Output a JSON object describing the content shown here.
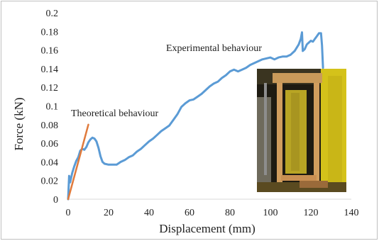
{
  "chart_data": {
    "type": "line",
    "xlabel": "Displacement (mm)",
    "ylabel": "Force (kN)",
    "xlim": [
      0,
      140
    ],
    "ylim": [
      0,
      0.2
    ],
    "xticks": [
      "0",
      "20",
      "40",
      "60",
      "80",
      "100",
      "120",
      "140"
    ],
    "yticks": [
      "0",
      "0.02",
      "0.04",
      "0.06",
      "0.08",
      "0.1",
      "0.12",
      "0.14",
      "0.16",
      "0.18",
      "0.2"
    ],
    "grid": false,
    "series": [
      {
        "name": "Experimental behaviour",
        "color": "#5b9bd5",
        "x": [
          0,
          0.5,
          1,
          2,
          3,
          4,
          5,
          6,
          7,
          8,
          9,
          10,
          11,
          12,
          13,
          14,
          15,
          16,
          17,
          18,
          20,
          22,
          24,
          26,
          28,
          30,
          32,
          34,
          36,
          38,
          40,
          42,
          44,
          46,
          48,
          50,
          52,
          54,
          56,
          58,
          60,
          62,
          64,
          66,
          68,
          70,
          72,
          74,
          76,
          78,
          80,
          82,
          84,
          86,
          88,
          90,
          92,
          94,
          96,
          98,
          100,
          102,
          104,
          106,
          108,
          110,
          112,
          114,
          115,
          115.6,
          116,
          117,
          118,
          119,
          120,
          121,
          122,
          123,
          124,
          125,
          125.5,
          126
        ],
        "y": [
          0,
          0.025,
          0.018,
          0.028,
          0.035,
          0.041,
          0.045,
          0.052,
          0.054,
          0.053,
          0.056,
          0.061,
          0.064,
          0.066,
          0.065,
          0.062,
          0.055,
          0.046,
          0.04,
          0.038,
          0.037,
          0.037,
          0.037,
          0.04,
          0.042,
          0.045,
          0.047,
          0.051,
          0.054,
          0.058,
          0.062,
          0.065,
          0.069,
          0.073,
          0.076,
          0.079,
          0.085,
          0.091,
          0.099,
          0.103,
          0.106,
          0.107,
          0.11,
          0.113,
          0.117,
          0.121,
          0.124,
          0.126,
          0.13,
          0.133,
          0.137,
          0.139,
          0.137,
          0.139,
          0.141,
          0.144,
          0.146,
          0.148,
          0.15,
          0.151,
          0.152,
          0.15,
          0.152,
          0.153,
          0.153,
          0.155,
          0.159,
          0.166,
          0.172,
          0.179,
          0.159,
          0.161,
          0.166,
          0.168,
          0.17,
          0.169,
          0.172,
          0.175,
          0.178,
          0.178,
          0.165,
          0.141
        ]
      },
      {
        "name": "Theoretical behaviour",
        "color": "#e07a3c",
        "x": [
          0,
          10
        ],
        "y": [
          0,
          0.08
        ]
      }
    ],
    "annotations": [
      {
        "text": "Experimental behaviour"
      },
      {
        "text": "Theoretical behaviour"
      }
    ]
  }
}
